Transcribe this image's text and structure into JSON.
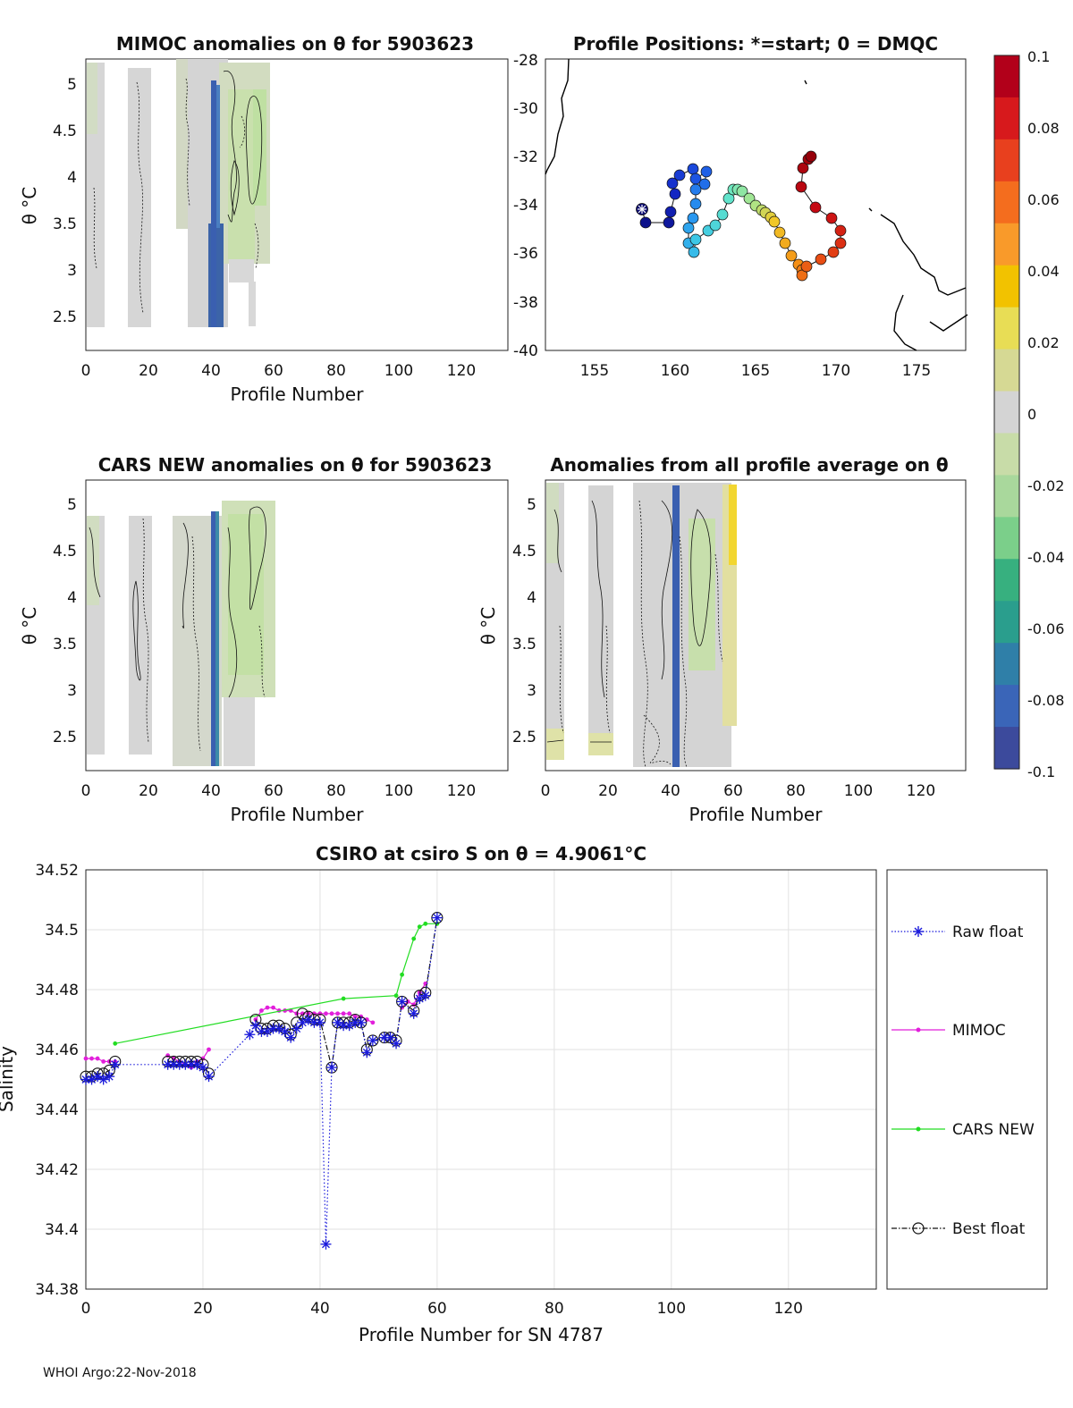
{
  "footer": "WHOI Argo:22-Nov-2018",
  "colorbar": {
    "ticks": [
      "0.1",
      "0.08",
      "0.06",
      "0.04",
      "0.02",
      "0",
      "-0.02",
      "-0.04",
      "-0.06",
      "-0.08",
      "-0.1"
    ],
    "colors": [
      "#b2001a",
      "#d7191c",
      "#e8401e",
      "#f46d1e",
      "#f99a2a",
      "#f2c200",
      "#e8dd55",
      "#d6d994",
      "#d4d4d4",
      "#c8dca8",
      "#a9d89c",
      "#7bcf8a",
      "#37b07f",
      "#2a9e8d",
      "#2f7fa8",
      "#3a65b8",
      "#3c4a9c"
    ]
  },
  "panels": {
    "mimoc": {
      "title": "MIMOC anomalies on θ  for 5903623",
      "ylabel": "θ °C",
      "xlabel": "Profile Number",
      "xticks": [
        "0",
        "20",
        "40",
        "60",
        "80",
        "100",
        "120"
      ],
      "yticks": [
        "5",
        "4.5",
        "4",
        "3.5",
        "3",
        "2.5"
      ]
    },
    "positions": {
      "title": "Profile Positions: *=start; 0 = DMQC",
      "xticks": [
        "155",
        "160",
        "165",
        "170",
        "175"
      ],
      "yticks": [
        "-28",
        "-30",
        "-32",
        "-34",
        "-36",
        "-38",
        "-40"
      ]
    },
    "cars": {
      "title": "CARS NEW anomalies on θ for 5903623",
      "ylabel": "θ °C",
      "xlabel": "Profile Number",
      "xticks": [
        "0",
        "20",
        "40",
        "60",
        "80",
        "100",
        "120"
      ],
      "yticks": [
        "5",
        "4.5",
        "4",
        "3.5",
        "3",
        "2.5"
      ]
    },
    "avg": {
      "title": "Anomalies from all profile average on θ",
      "ylabel": "θ °C",
      "xlabel": "Profile Number",
      "xticks": [
        "0",
        "20",
        "40",
        "60",
        "80",
        "100",
        "120"
      ],
      "yticks": [
        "5",
        "4.5",
        "4",
        "3.5",
        "3",
        "2.5"
      ]
    }
  },
  "chart_data": {
    "type": "line",
    "title": "CSIRO at csiro S on θ = 4.9061°C",
    "xlabel": "Profile Number for SN 4787",
    "ylabel": "Salinity",
    "xlim": [
      0,
      135
    ],
    "ylim": [
      34.38,
      34.52
    ],
    "xticks": [
      "0",
      "20",
      "40",
      "60",
      "80",
      "100",
      "120"
    ],
    "yticks": [
      "34.52",
      "34.5",
      "34.48",
      "34.46",
      "34.44",
      "34.42",
      "34.4",
      "34.38"
    ],
    "legend": [
      "Raw float",
      "MIMOC",
      "CARS NEW",
      "Best float"
    ],
    "series": [
      {
        "name": "Raw float",
        "color": "#1a1adb",
        "points": [
          [
            0,
            34.45
          ],
          [
            1,
            34.45
          ],
          [
            2,
            34.451
          ],
          [
            3,
            34.45
          ],
          [
            4,
            34.451
          ],
          [
            5,
            34.455
          ],
          [
            14,
            34.455
          ],
          [
            15,
            34.455
          ],
          [
            16,
            34.455
          ],
          [
            17,
            34.455
          ],
          [
            18,
            34.455
          ],
          [
            19,
            34.455
          ],
          [
            20,
            34.454
          ],
          [
            21,
            34.451
          ],
          [
            28,
            34.465
          ],
          [
            29,
            34.468
          ],
          [
            30,
            34.466
          ],
          [
            31,
            34.466
          ],
          [
            32,
            34.467
          ],
          [
            33,
            34.467
          ],
          [
            34,
            34.466
          ],
          [
            35,
            34.464
          ],
          [
            36,
            34.467
          ],
          [
            37,
            34.469
          ],
          [
            38,
            34.47
          ],
          [
            39,
            34.469
          ],
          [
            40,
            34.469
          ],
          [
            41,
            34.395
          ],
          [
            42,
            34.454
          ],
          [
            43,
            34.469
          ],
          [
            44,
            34.468
          ],
          [
            45,
            34.468
          ],
          [
            46,
            34.469
          ],
          [
            47,
            34.469
          ],
          [
            48,
            34.459
          ],
          [
            49,
            34.463
          ],
          [
            51,
            34.464
          ],
          [
            52,
            34.464
          ],
          [
            53,
            34.462
          ],
          [
            54,
            34.476
          ],
          [
            56,
            34.472
          ],
          [
            57,
            34.477
          ],
          [
            58,
            34.478
          ],
          [
            60,
            34.504
          ]
        ]
      },
      {
        "name": "MIMOC",
        "color": "#e21fdb",
        "points": [
          [
            0,
            34.457
          ],
          [
            1,
            34.457
          ],
          [
            2,
            34.457
          ],
          [
            3,
            34.456
          ],
          [
            4,
            34.456
          ],
          [
            5,
            34.456
          ],
          [
            14,
            34.458
          ],
          [
            15,
            34.457
          ],
          [
            16,
            34.456
          ],
          [
            17,
            34.455
          ],
          [
            18,
            34.454
          ],
          [
            19,
            34.456
          ],
          [
            20,
            34.457
          ],
          [
            21,
            34.46
          ],
          [
            29,
            34.47
          ],
          [
            30,
            34.473
          ],
          [
            31,
            34.474
          ],
          [
            32,
            34.474
          ],
          [
            33,
            34.473
          ],
          [
            34,
            34.473
          ],
          [
            35,
            34.473
          ],
          [
            36,
            34.472
          ],
          [
            37,
            34.472
          ],
          [
            38,
            34.472
          ],
          [
            39,
            34.472
          ],
          [
            40,
            34.472
          ],
          [
            41,
            34.472
          ],
          [
            42,
            34.472
          ],
          [
            43,
            34.472
          ],
          [
            44,
            34.472
          ],
          [
            45,
            34.472
          ],
          [
            46,
            34.471
          ],
          [
            47,
            34.471
          ],
          [
            48,
            34.47
          ],
          [
            49,
            34.469
          ],
          [
            54,
            34.474
          ],
          [
            55,
            34.476
          ],
          [
            56,
            34.475
          ],
          [
            57,
            34.479
          ],
          [
            58,
            34.482
          ]
        ]
      },
      {
        "name": "CARS NEW",
        "color": "#22dd22",
        "points": [
          [
            5,
            34.462
          ],
          [
            44,
            34.477
          ],
          [
            53,
            34.478
          ],
          [
            54,
            34.485
          ],
          [
            56,
            34.497
          ],
          [
            57,
            34.501
          ],
          [
            58,
            34.502
          ],
          [
            60,
            34.502
          ]
        ]
      },
      {
        "name": "Best float",
        "color": "#111111",
        "points": [
          [
            0,
            34.451
          ],
          [
            1,
            34.451
          ],
          [
            2,
            34.452
          ],
          [
            3,
            34.452
          ],
          [
            4,
            34.453
          ],
          [
            5,
            34.456
          ],
          [
            14,
            34.456
          ],
          [
            15,
            34.456
          ],
          [
            16,
            34.456
          ],
          [
            17,
            34.456
          ],
          [
            18,
            34.456
          ],
          [
            19,
            34.456
          ],
          [
            20,
            34.455
          ],
          [
            21,
            34.452
          ],
          [
            29,
            34.47
          ],
          [
            30,
            34.467
          ],
          [
            31,
            34.467
          ],
          [
            32,
            34.468
          ],
          [
            33,
            34.468
          ],
          [
            34,
            34.467
          ],
          [
            35,
            34.465
          ],
          [
            36,
            34.469
          ],
          [
            37,
            34.472
          ],
          [
            38,
            34.471
          ],
          [
            39,
            34.47
          ],
          [
            40,
            34.47
          ],
          [
            42,
            34.454
          ],
          [
            43,
            34.469
          ],
          [
            44,
            34.469
          ],
          [
            45,
            34.469
          ],
          [
            46,
            34.47
          ],
          [
            47,
            34.469
          ],
          [
            48,
            34.46
          ],
          [
            49,
            34.463
          ],
          [
            51,
            34.464
          ],
          [
            52,
            34.464
          ],
          [
            53,
            34.463
          ],
          [
            54,
            34.476
          ],
          [
            56,
            34.473
          ],
          [
            57,
            34.478
          ],
          [
            58,
            34.479
          ],
          [
            60,
            34.504
          ]
        ]
      }
    ]
  }
}
